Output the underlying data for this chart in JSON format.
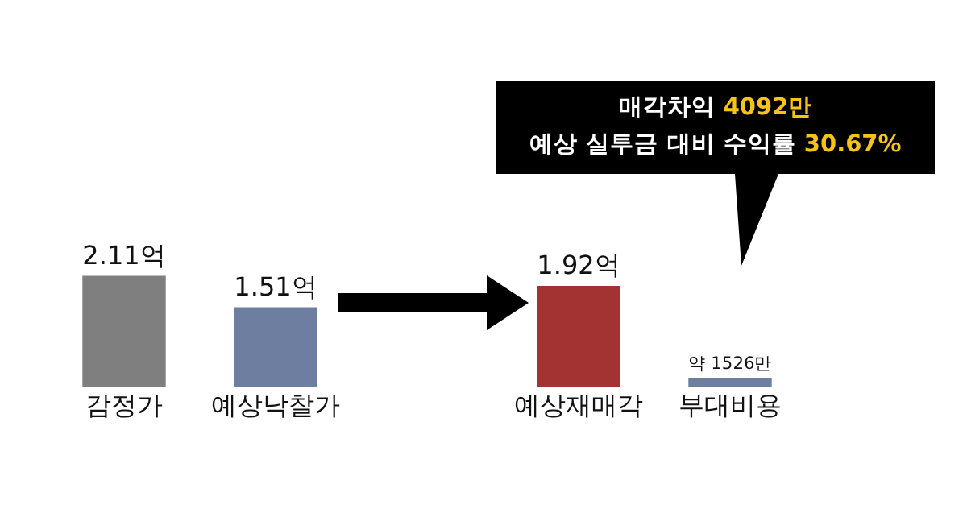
{
  "chart_data": {
    "type": "bar",
    "categories": [
      "감정가",
      "예상낙찰가",
      null,
      "예상재매각",
      "부대비용"
    ],
    "values": [
      2.11,
      1.51,
      null,
      1.92,
      0.1526
    ],
    "colors": [
      "#7f7f7f",
      "#6e7ea0",
      null,
      "#a33232",
      "#6e7ea0"
    ],
    "value_labels": [
      "2.11억",
      "1.51억",
      null,
      "1.92억",
      "약 1526만"
    ],
    "annotations": [
      "매각차익 4092만",
      "예상 실투금 대비 수익률 30.67%"
    ],
    "grid": false,
    "legend": false
  }
}
